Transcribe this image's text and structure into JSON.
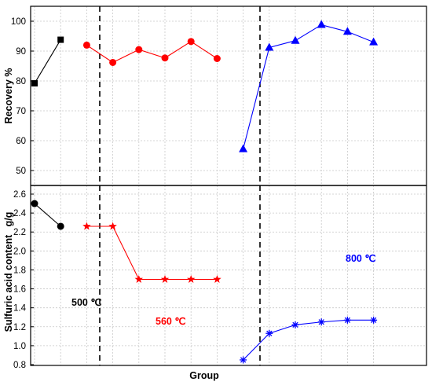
{
  "chart_data": [
    {
      "type": "line",
      "panel": "top",
      "xlabel": "",
      "ylabel": "Recovery %",
      "ylim": [
        45,
        105
      ],
      "yticks": [
        "50",
        "60",
        "70",
        "80",
        "90",
        "100"
      ],
      "grid": true,
      "series": [
        {
          "group": "500 ℃",
          "color": "#000000",
          "marker": "square",
          "x": [
            1,
            2
          ],
          "values": [
            79.2,
            93.8
          ]
        },
        {
          "group": "560 ℃",
          "color": "#ff0000",
          "marker": "circle",
          "x": [
            3,
            4,
            5,
            6,
            7,
            8
          ],
          "values": [
            92.0,
            86.2,
            90.5,
            87.7,
            93.2,
            87.5
          ]
        },
        {
          "group": "800 ℃",
          "color": "#0000ff",
          "marker": "triangle",
          "x": [
            9,
            10,
            11,
            12,
            13,
            14
          ],
          "values": [
            57.2,
            91.2,
            93.5,
            98.8,
            96.5,
            93.0
          ]
        }
      ]
    },
    {
      "type": "line",
      "panel": "bottom",
      "xlabel": "Group",
      "ylabel": "Sulfuric acid content   g/g",
      "ylim": [
        0.8,
        2.7
      ],
      "yticks": [
        "0.8",
        "1.0",
        "1.2",
        "1.4",
        "1.6",
        "1.8",
        "2.0",
        "2.2",
        "2.4",
        "2.6"
      ],
      "grid": true,
      "series": [
        {
          "group": "500 ℃",
          "color": "#000000",
          "marker": "circle",
          "x": [
            1,
            2
          ],
          "values": [
            2.5,
            2.26
          ]
        },
        {
          "group": "560 ℃",
          "color": "#ff0000",
          "marker": "star",
          "x": [
            3,
            4,
            5,
            6,
            7,
            8
          ],
          "values": [
            2.26,
            2.26,
            1.7,
            1.7,
            1.7,
            1.7
          ]
        },
        {
          "group": "800 ℃",
          "color": "#0000ff",
          "marker": "asterisk",
          "x": [
            9,
            10,
            11,
            12,
            13,
            14
          ],
          "values": [
            0.85,
            1.13,
            1.22,
            1.25,
            1.27,
            1.27
          ]
        }
      ]
    }
  ],
  "annotations": [
    {
      "text": "500 ℃",
      "color": "#000000"
    },
    {
      "text": "560 ℃",
      "color": "#ff0000"
    },
    {
      "text": "800 ℃",
      "color": "#0000ff"
    }
  ]
}
